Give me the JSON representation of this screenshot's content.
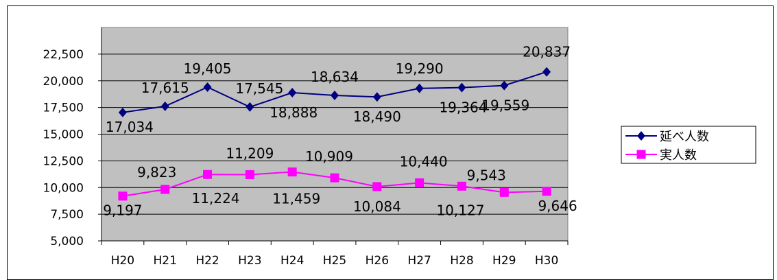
{
  "chart_data": {
    "type": "line",
    "categories": [
      "H20",
      "H21",
      "H22",
      "H23",
      "H24",
      "H25",
      "H26",
      "H27",
      "H28",
      "H29",
      "H30"
    ],
    "series": [
      {
        "name": "延べ人数",
        "color": "#000080",
        "marker": "diamond",
        "values": [
          17034,
          17615,
          19405,
          17545,
          18888,
          18634,
          18490,
          19290,
          19364,
          19559,
          20837
        ],
        "labels": [
          "17,034",
          "17,615",
          "19,405",
          "17,545",
          "18,888",
          "18,634",
          "18,490",
          "19,290",
          "19,364",
          "19,559",
          "20,837"
        ]
      },
      {
        "name": "実人数",
        "color": "#ff00ff",
        "marker": "square",
        "values": [
          9197,
          9823,
          11224,
          11209,
          11459,
          10909,
          10084,
          10440,
          10127,
          9543,
          9646
        ],
        "labels": [
          "9,197",
          "9,823",
          "11,224",
          "11,209",
          "11,459",
          "10,909",
          "10,084",
          "10,440",
          "10,127",
          "9,543",
          "9,646"
        ]
      }
    ],
    "yticks": [
      "5,000",
      "7,500",
      "10,000",
      "12,500",
      "15,000",
      "17,500",
      "20,000",
      "22,500"
    ],
    "ylim": [
      5000,
      25000
    ],
    "grid": true,
    "plot_background": "#c0c0c0",
    "legend": "right"
  }
}
